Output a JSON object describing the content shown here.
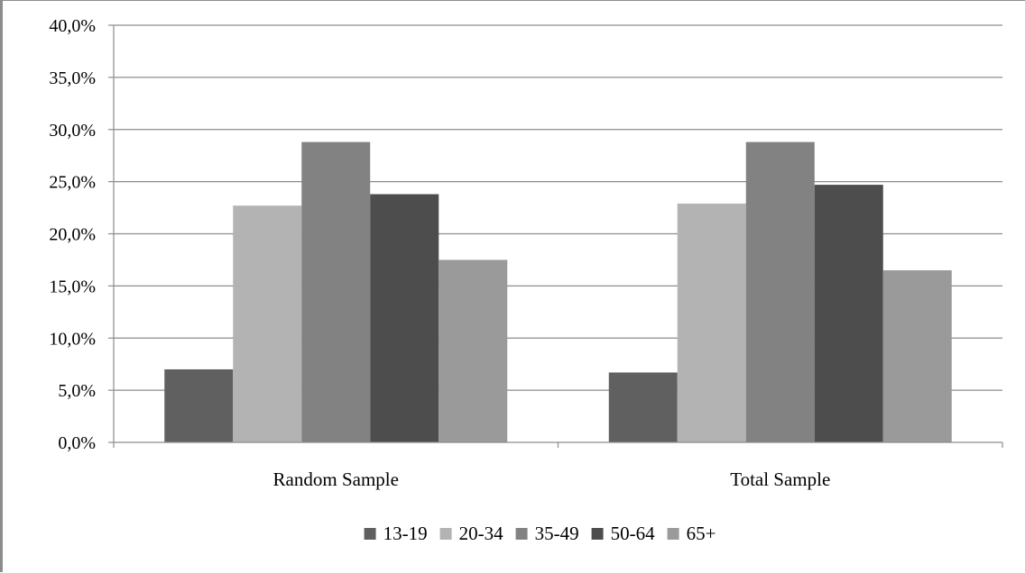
{
  "chart_data": {
    "type": "bar",
    "categories": [
      "Random Sample",
      "Total Sample"
    ],
    "series": [
      {
        "name": "13-19",
        "values": [
          7.0,
          6.7
        ],
        "color": "#606060"
      },
      {
        "name": "20-34",
        "values": [
          22.7,
          22.9
        ],
        "color": "#b3b3b3"
      },
      {
        "name": "35-49",
        "values": [
          28.8,
          28.8
        ],
        "color": "#828282"
      },
      {
        "name": "50-64",
        "values": [
          23.8,
          24.7
        ],
        "color": "#4d4d4d"
      },
      {
        "name": "65+",
        "values": [
          17.5,
          16.5
        ],
        "color": "#9a9a9a"
      }
    ],
    "ylim": [
      0,
      40
    ],
    "yticks": [
      0,
      5,
      10,
      15,
      20,
      25,
      30,
      35,
      40
    ],
    "ytick_labels": [
      "0,0%",
      "5,0%",
      "10,0%",
      "15,0%",
      "20,0%",
      "25,0%",
      "30,0%",
      "35,0%",
      "40,0%"
    ],
    "grid": true,
    "legend_position": "bottom",
    "title": "",
    "xlabel": "",
    "ylabel": ""
  }
}
